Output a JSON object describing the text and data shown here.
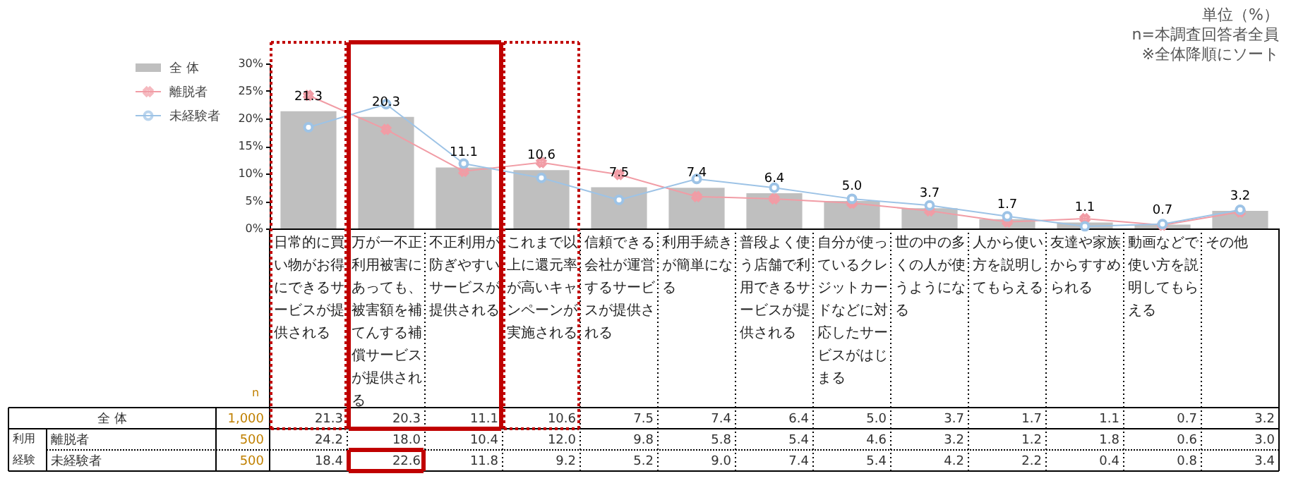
{
  "chart_data": {
    "type": "bar",
    "categories": [
      "日常的に買い物がお得にできるサービスが提供される",
      "万が一不正利用被害にあっても、被害額を補てんする補償サービスが提供される",
      "不正利用が防ぎやすいサービスが提供される",
      "これまで以上に還元率が高いキャンペーンが実施される",
      "信頼できる会社が運営するサービスが提供される",
      "利用手続きが簡単になる",
      "普段よく使う店舗で利用できるサービスが提供される",
      "自分が使っているクレジットカードなどに対応したサービスがはじまる",
      "世の中の多くの人が使うようになる",
      "人から使い方を説明してもらえる",
      "友達や家族からすすめられる",
      "動画などで使い方を説明してもらえる",
      "その他"
    ],
    "series": [
      {
        "name": "全 体",
        "color": "#bfbfbf",
        "values": [
          21.3,
          20.3,
          11.1,
          10.6,
          7.5,
          7.4,
          6.4,
          5.0,
          3.7,
          1.7,
          1.1,
          0.7,
          3.2
        ],
        "value_labels": [
          "21.3",
          "20.3",
          "11.1",
          "10.6",
          "7.5",
          "7.4",
          "6.4",
          "5.0",
          "3.7",
          "1.7",
          "1.1",
          "0.7",
          "3.2"
        ]
      },
      {
        "name": "離脱者",
        "type": "line",
        "color": "#f19ca5",
        "marker": "cross",
        "values": [
          24.2,
          18.0,
          10.4,
          12.0,
          9.8,
          5.8,
          5.4,
          4.6,
          3.2,
          1.2,
          1.8,
          0.6,
          3.0
        ],
        "value_labels": [
          "24.2",
          "18.0",
          "10.4",
          "12.0",
          "9.8",
          "5.8",
          "5.4",
          "4.6",
          "3.2",
          "1.2",
          "1.8",
          "0.6",
          "3.0"
        ]
      },
      {
        "name": "未経験者",
        "type": "line",
        "color": "#9dc3e6",
        "marker": "circle",
        "values": [
          18.4,
          22.6,
          11.8,
          9.2,
          5.2,
          9.0,
          7.4,
          5.4,
          4.2,
          2.2,
          0.4,
          0.8,
          3.4
        ],
        "value_labels": [
          "18.4",
          "22.6",
          "11.8",
          "9.2",
          "5.2",
          "9.0",
          "7.4",
          "5.4",
          "4.2",
          "2.2",
          "0.4",
          "0.8",
          "3.4"
        ]
      }
    ],
    "ylim": [
      0,
      30
    ],
    "yticks": [
      {
        "value": 0,
        "label": "0%"
      },
      {
        "value": 5,
        "label": "5%"
      },
      {
        "value": 10,
        "label": "10%"
      },
      {
        "value": 15,
        "label": "15%"
      },
      {
        "value": 20,
        "label": "20%"
      },
      {
        "value": 25,
        "label": "25%"
      },
      {
        "value": 30,
        "label": "30%"
      }
    ],
    "grid": false,
    "legend": "left",
    "annotations": [
      "単位（%）",
      "n=本調査回答者全員",
      "※全体降順にソート",
      "n",
      "1,000",
      "500",
      "500",
      "利用経験"
    ]
  }
}
